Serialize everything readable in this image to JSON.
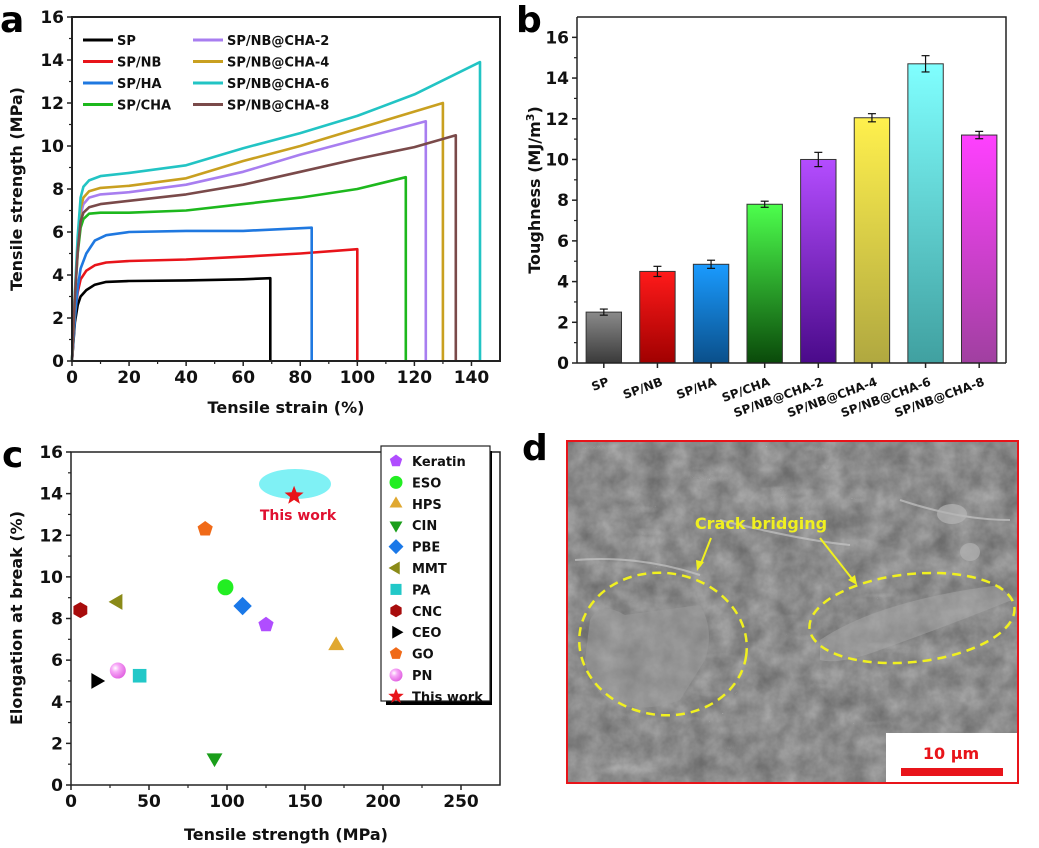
{
  "panels": [
    "a",
    "b",
    "c",
    "d"
  ],
  "chart_data": [
    {
      "panel": "a",
      "type": "line",
      "title": "",
      "xlabel": "Tensile strain (%)",
      "ylabel": "Tensile strength (MPa)",
      "xlim": [
        0,
        150
      ],
      "ylim": [
        0,
        16
      ],
      "xticks": [
        0,
        20,
        40,
        60,
        80,
        100,
        120,
        140
      ],
      "yticks": [
        0,
        2,
        4,
        6,
        8,
        10,
        12,
        14,
        16
      ],
      "grid": false,
      "legend_position": "top-left",
      "series": [
        {
          "name": "SP",
          "color": "#000000",
          "break_strain": 69.5,
          "x": [
            0,
            1,
            2,
            3,
            5,
            8,
            12,
            20,
            40,
            60,
            69.5
          ],
          "y": [
            0,
            1.8,
            2.6,
            3.0,
            3.3,
            3.55,
            3.68,
            3.72,
            3.75,
            3.8,
            3.85
          ]
        },
        {
          "name": "SP/NB",
          "color": "#e8141a",
          "break_strain": 100,
          "x": [
            0,
            1,
            2,
            3,
            5,
            8,
            12,
            20,
            40,
            60,
            80,
            100
          ],
          "y": [
            0,
            2.2,
            3.2,
            3.8,
            4.2,
            4.45,
            4.58,
            4.65,
            4.72,
            4.85,
            5.0,
            5.2
          ]
        },
        {
          "name": "SP/HA",
          "color": "#1f78e0",
          "break_strain": 84,
          "x": [
            0,
            1,
            2,
            3,
            5,
            8,
            12,
            20,
            40,
            60,
            84
          ],
          "y": [
            0,
            2.0,
            3.4,
            4.3,
            5.0,
            5.6,
            5.85,
            6.0,
            6.05,
            6.05,
            6.2
          ]
        },
        {
          "name": "SP/CHA",
          "color": "#1db81d",
          "break_strain": 117,
          "x": [
            0,
            1,
            2,
            3,
            4,
            6,
            10,
            20,
            40,
            60,
            80,
            100,
            117
          ],
          "y": [
            0,
            3.0,
            5.0,
            6.2,
            6.6,
            6.85,
            6.9,
            6.9,
            7.0,
            7.3,
            7.6,
            8.0,
            8.55
          ]
        },
        {
          "name": "SP/NB@CHA-2",
          "color": "#a87ef0",
          "break_strain": 124,
          "x": [
            0,
            1,
            2,
            3,
            4,
            6,
            10,
            20,
            40,
            60,
            80,
            100,
            124
          ],
          "y": [
            0,
            3.0,
            5.2,
            6.8,
            7.3,
            7.6,
            7.75,
            7.85,
            8.2,
            8.8,
            9.6,
            10.3,
            11.15
          ]
        },
        {
          "name": "SP/NB@CHA-4",
          "color": "#c9a020",
          "break_strain": 130,
          "x": [
            0,
            1,
            2,
            3,
            4,
            6,
            10,
            20,
            40,
            60,
            80,
            100,
            130
          ],
          "y": [
            0,
            3.1,
            5.4,
            7.1,
            7.6,
            7.9,
            8.05,
            8.15,
            8.5,
            9.3,
            10.0,
            10.8,
            12.0
          ]
        },
        {
          "name": "SP/NB@CHA-6",
          "color": "#22c4c4",
          "break_strain": 143,
          "x": [
            0,
            1,
            2,
            3,
            4,
            6,
            10,
            20,
            40,
            60,
            80,
            100,
            120,
            143
          ],
          "y": [
            0,
            3.2,
            5.8,
            7.6,
            8.1,
            8.4,
            8.6,
            8.75,
            9.1,
            9.9,
            10.6,
            11.4,
            12.4,
            13.9
          ]
        },
        {
          "name": "SP/NB@CHA-8",
          "color": "#7a4a4a",
          "break_strain": 134.5,
          "x": [
            0,
            1,
            2,
            3,
            4,
            6,
            10,
            20,
            40,
            60,
            80,
            100,
            120,
            134.5
          ],
          "y": [
            0,
            3.0,
            5.1,
            6.5,
            6.9,
            7.15,
            7.3,
            7.45,
            7.75,
            8.2,
            8.8,
            9.4,
            9.95,
            10.5
          ]
        }
      ]
    },
    {
      "panel": "b",
      "type": "bar",
      "title": "",
      "xlabel": "",
      "ylabel": "Toughness (MJ/m3)",
      "ylabel_main": "Toughness (MJ/m",
      "ylabel_sup": "3",
      "ylabel_tail": ")",
      "ylim": [
        0,
        17
      ],
      "yticks": [
        0,
        2,
        4,
        6,
        8,
        10,
        12,
        14,
        16
      ],
      "grid": false,
      "categories": [
        "SP",
        "SP/NB",
        "SP/HA",
        "SP/CHA",
        "SP/NB@CHA-2",
        "SP/NB@CHA-4",
        "SP/NB@CHA-6",
        "SP/NB@CHA-8"
      ],
      "values": [
        2.5,
        4.5,
        4.85,
        7.8,
        10.0,
        12.05,
        14.7,
        11.2
      ],
      "errors": [
        0.15,
        0.25,
        0.2,
        0.15,
        0.35,
        0.2,
        0.4,
        0.18
      ],
      "colors_top": [
        "#8a8a8a",
        "#ff1a1a",
        "#1a9bff",
        "#4dff4d",
        "#b44dff",
        "#fff04d",
        "#80ffff",
        "#ff40ff"
      ],
      "colors_bottom": [
        "#3a3a3a",
        "#a00000",
        "#0a4f8a",
        "#0a4a0a",
        "#4a0a8a",
        "#b0a840",
        "#40a0a0",
        "#a040a0"
      ]
    },
    {
      "panel": "c",
      "type": "scatter",
      "title": "",
      "xlabel": "Tensile strength (MPa)",
      "ylabel": "Elongation at break (%)",
      "xlim": [
        0,
        275
      ],
      "ylim": [
        0,
        16
      ],
      "xticks": [
        0,
        50,
        100,
        150,
        200,
        250
      ],
      "yticks": [
        0,
        2,
        4,
        6,
        8,
        10,
        12,
        14,
        16
      ],
      "grid": false,
      "legend_position": "right",
      "annotation": "This work",
      "series": [
        {
          "name": "Keratin",
          "marker": "pentagon",
          "color": "#b04dff",
          "x": 125,
          "y": 7.7
        },
        {
          "name": "ESO",
          "marker": "circle",
          "color": "#22ee22",
          "x": 99,
          "y": 9.5
        },
        {
          "name": "HPS",
          "marker": "triangle-up",
          "color": "#e0a830",
          "x": 170,
          "y": 6.7
        },
        {
          "name": "CIN",
          "marker": "triangle-down",
          "color": "#1a9e1a",
          "x": 92,
          "y": 1.3
        },
        {
          "name": "PBE",
          "marker": "diamond",
          "color": "#1a78e8",
          "x": 110,
          "y": 8.6
        },
        {
          "name": "MMT",
          "marker": "triangle-left",
          "color": "#8a8a18",
          "x": 30,
          "y": 8.8
        },
        {
          "name": "PA",
          "marker": "square",
          "color": "#22c8c8",
          "x": 44,
          "y": 5.25
        },
        {
          "name": "CNC",
          "marker": "hexagon",
          "color": "#a80c0c",
          "x": 6,
          "y": 8.4
        },
        {
          "name": "CEO",
          "marker": "triangle-right",
          "color": "#000000",
          "x": 16,
          "y": 5.0
        },
        {
          "name": "GO",
          "marker": "pentagon",
          "color": "#f06a18",
          "x": 86,
          "y": 12.3
        },
        {
          "name": "PN",
          "marker": "sphere",
          "color": "#f27ef2",
          "x": 30,
          "y": 5.5
        },
        {
          "name": "This work",
          "marker": "star",
          "color": "#e8141a",
          "x": 143,
          "y": 13.9
        }
      ]
    }
  ],
  "sem_image": {
    "panel": "d",
    "annotation": "Crack bridging",
    "scale_bar": "10 µm",
    "frame_color": "#e8141a",
    "highlight_color": "#f0f020"
  }
}
